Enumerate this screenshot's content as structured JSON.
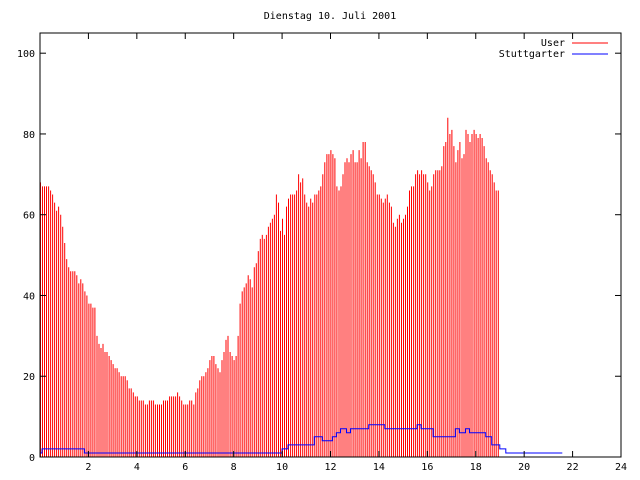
{
  "chart_data": {
    "type": "bar",
    "title": "Dienstag 10. Juli 2001",
    "xlabel": "",
    "ylabel": "",
    "xlim": [
      0,
      24
    ],
    "ylim": [
      0,
      105
    ],
    "x_ticks": [
      "2",
      "4",
      "6",
      "8",
      "10",
      "12",
      "14",
      "16",
      "18",
      "20",
      "22",
      "24"
    ],
    "y_ticks": [
      "0",
      "20",
      "40",
      "60",
      "80",
      "100"
    ],
    "grid": false,
    "legend_position": "top-right",
    "interval_hours": 0.0833,
    "series": [
      {
        "name": "User",
        "style": "impulses",
        "color": "#ff0000",
        "values": [
          68,
          67,
          67,
          67,
          67,
          66,
          65,
          63,
          61,
          62,
          60,
          57,
          53,
          49,
          47,
          46,
          46,
          46,
          45,
          43,
          44,
          43,
          41,
          40,
          38,
          38,
          37,
          37,
          30,
          28,
          27,
          28,
          26,
          26,
          25,
          24,
          23,
          22,
          22,
          21,
          20,
          20,
          20,
          19,
          17,
          17,
          16,
          15,
          15,
          14,
          14,
          14,
          13,
          13,
          14,
          14,
          14,
          13,
          13,
          13,
          13,
          14,
          14,
          14,
          15,
          15,
          15,
          15,
          16,
          15,
          14,
          13,
          13,
          13,
          14,
          14,
          13,
          16,
          17,
          19,
          20,
          20,
          21,
          22,
          24,
          25,
          25,
          23,
          22,
          21,
          24,
          26,
          29,
          30,
          26,
          25,
          24,
          25,
          30,
          38,
          41,
          42,
          43,
          45,
          44,
          42,
          47,
          48,
          51,
          54,
          55,
          54,
          55,
          57,
          58,
          59,
          60,
          65,
          63,
          56,
          59,
          55,
          62,
          64,
          65,
          65,
          65,
          66,
          70,
          68,
          69,
          65,
          63,
          62,
          64,
          63,
          65,
          65,
          66,
          67,
          70,
          73,
          75,
          75,
          76,
          75,
          74,
          67,
          66,
          67,
          70,
          73,
          74,
          73,
          75,
          76,
          73,
          73,
          76,
          74,
          78,
          78,
          73,
          72,
          71,
          70,
          68,
          65,
          65,
          64,
          63,
          64,
          65,
          63,
          62,
          58,
          57,
          59,
          60,
          58,
          59,
          60,
          62,
          66,
          67,
          67,
          70,
          71,
          70,
          71,
          70,
          70,
          68,
          66,
          67,
          70,
          71,
          71,
          71,
          72,
          77,
          78,
          84,
          80,
          81,
          77,
          73,
          76,
          78,
          74,
          75,
          81,
          80,
          78,
          80,
          81,
          80,
          79,
          80,
          79,
          77,
          74,
          73,
          71,
          70,
          68,
          66,
          66
        ]
      },
      {
        "name": "Stuttgarter",
        "style": "steps",
        "color": "#0000ff",
        "values": [
          1,
          2,
          2,
          2,
          2,
          2,
          2,
          2,
          2,
          2,
          2,
          2,
          2,
          2,
          2,
          2,
          2,
          2,
          2,
          2,
          2,
          2,
          1,
          1,
          1,
          1,
          1,
          1,
          1,
          1,
          1,
          1,
          1,
          1,
          1,
          1,
          1,
          1,
          1,
          1,
          1,
          1,
          1,
          1,
          1,
          1,
          1,
          1,
          1,
          1,
          1,
          1,
          1,
          1,
          1,
          1,
          1,
          1,
          1,
          1,
          1,
          1,
          1,
          1,
          1,
          1,
          1,
          1,
          1,
          1,
          1,
          1,
          1,
          1,
          1,
          1,
          1,
          1,
          1,
          1,
          1,
          1,
          1,
          1,
          1,
          1,
          1,
          1,
          1,
          1,
          1,
          1,
          1,
          1,
          1,
          1,
          1,
          1,
          1,
          1,
          1,
          1,
          1,
          1,
          1,
          1,
          1,
          1,
          1,
          1,
          1,
          1,
          1,
          1,
          1,
          1,
          1,
          1,
          1,
          1,
          2,
          2,
          2,
          3,
          3,
          3,
          3,
          3,
          3,
          3,
          3,
          3,
          3,
          3,
          3,
          3,
          5,
          5,
          5,
          5,
          4,
          4,
          4,
          4,
          4,
          5,
          5,
          6,
          6,
          7,
          7,
          7,
          6,
          6,
          7,
          7,
          7,
          7,
          7,
          7,
          7,
          7,
          7,
          8,
          8,
          8,
          8,
          8,
          8,
          8,
          8,
          7,
          7,
          7,
          7,
          7,
          7,
          7,
          7,
          7,
          7,
          7,
          7,
          7,
          7,
          7,
          7,
          8,
          8,
          7,
          7,
          7,
          7,
          7,
          7,
          5,
          5,
          5,
          5,
          5,
          5,
          5,
          5,
          5,
          5,
          5,
          7,
          7,
          6,
          6,
          6,
          7,
          7,
          6,
          6,
          6,
          6,
          6,
          6,
          6,
          6,
          5,
          5,
          5,
          3,
          3,
          3,
          3,
          2,
          2,
          2,
          1,
          1,
          1,
          1,
          1,
          1,
          1,
          1,
          1,
          1,
          1,
          1,
          1,
          1,
          1,
          1,
          1,
          1,
          1,
          1,
          1,
          1,
          1,
          1,
          1,
          1,
          1,
          1
        ]
      }
    ]
  }
}
